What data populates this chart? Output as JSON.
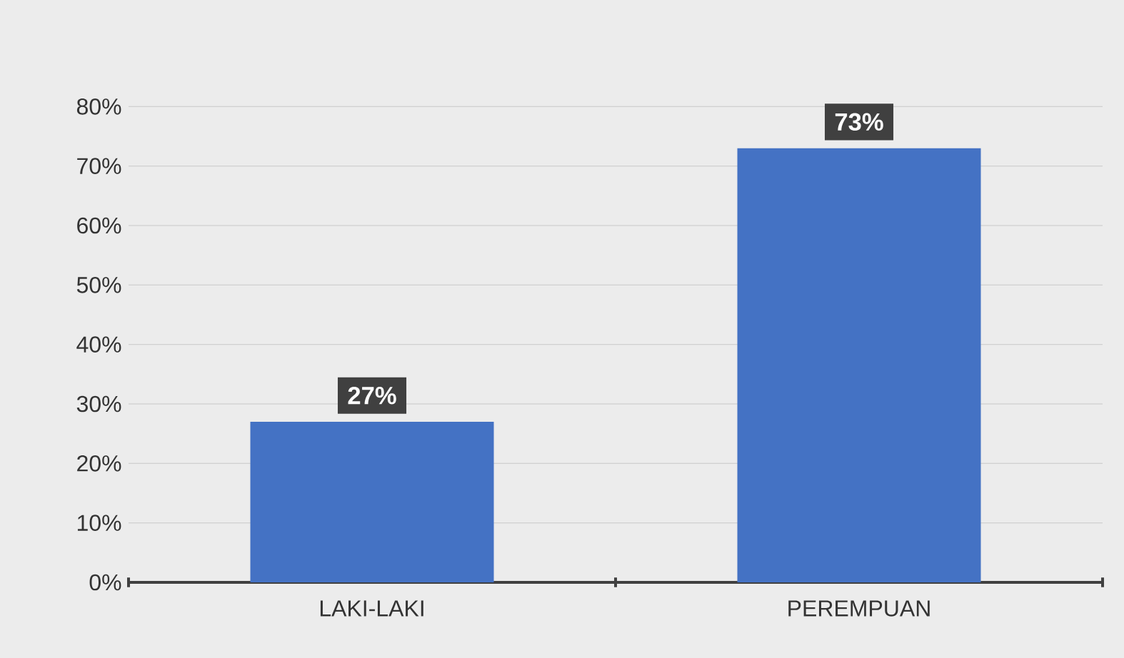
{
  "chart_data": {
    "type": "bar",
    "categories": [
      "LAKI-LAKI",
      "PEREMPUAN"
    ],
    "values": [
      27,
      73
    ],
    "color": "#4472c4",
    "value_labels": [
      "27%",
      "73%"
    ],
    "ylim": [
      0,
      80
    ],
    "yticks": [
      {
        "value": 0,
        "label": "0%"
      },
      {
        "value": 10,
        "label": "10%"
      },
      {
        "value": 20,
        "label": "20%"
      },
      {
        "value": 30,
        "label": "30%"
      },
      {
        "value": 40,
        "label": "40%"
      },
      {
        "value": 50,
        "label": "50%"
      },
      {
        "value": 60,
        "label": "60%"
      },
      {
        "value": 70,
        "label": "70%"
      },
      {
        "value": 80,
        "label": "80%"
      }
    ],
    "grid": "y"
  }
}
